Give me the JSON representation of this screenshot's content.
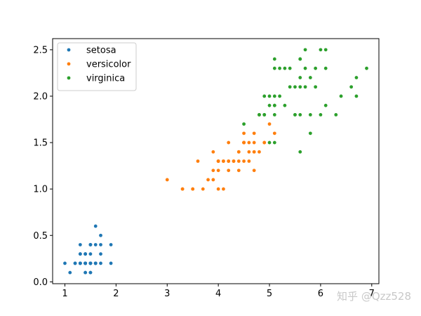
{
  "chart_data": {
    "type": "scatter",
    "xlim": [
      0.76,
      7.14
    ],
    "ylim": [
      -0.02,
      2.62
    ],
    "xticks": [
      1,
      2,
      3,
      4,
      5,
      6,
      7
    ],
    "yticks": [
      0.0,
      0.5,
      1.0,
      1.5,
      2.0,
      2.5
    ],
    "ytick_labels": [
      "0.0",
      "0.5",
      "1.0",
      "1.5",
      "2.0",
      "2.5"
    ],
    "grid": false,
    "legend_position": "top-left",
    "series": [
      {
        "name": "setosa",
        "color": "#1f77b4",
        "points": [
          [
            1.4,
            0.2
          ],
          [
            1.4,
            0.2
          ],
          [
            1.3,
            0.2
          ],
          [
            1.5,
            0.2
          ],
          [
            1.4,
            0.2
          ],
          [
            1.7,
            0.4
          ],
          [
            1.4,
            0.3
          ],
          [
            1.5,
            0.2
          ],
          [
            1.4,
            0.2
          ],
          [
            1.5,
            0.1
          ],
          [
            1.5,
            0.2
          ],
          [
            1.6,
            0.2
          ],
          [
            1.4,
            0.1
          ],
          [
            1.1,
            0.1
          ],
          [
            1.2,
            0.2
          ],
          [
            1.5,
            0.4
          ],
          [
            1.3,
            0.4
          ],
          [
            1.4,
            0.3
          ],
          [
            1.7,
            0.3
          ],
          [
            1.5,
            0.3
          ],
          [
            1.7,
            0.2
          ],
          [
            1.5,
            0.4
          ],
          [
            1.0,
            0.2
          ],
          [
            1.7,
            0.5
          ],
          [
            1.9,
            0.2
          ],
          [
            1.6,
            0.2
          ],
          [
            1.6,
            0.4
          ],
          [
            1.5,
            0.2
          ],
          [
            1.4,
            0.2
          ],
          [
            1.6,
            0.2
          ],
          [
            1.6,
            0.2
          ],
          [
            1.5,
            0.4
          ],
          [
            1.5,
            0.1
          ],
          [
            1.4,
            0.2
          ],
          [
            1.5,
            0.2
          ],
          [
            1.2,
            0.2
          ],
          [
            1.3,
            0.2
          ],
          [
            1.4,
            0.1
          ],
          [
            1.3,
            0.2
          ],
          [
            1.5,
            0.2
          ],
          [
            1.3,
            0.3
          ],
          [
            1.3,
            0.3
          ],
          [
            1.3,
            0.2
          ],
          [
            1.6,
            0.6
          ],
          [
            1.9,
            0.4
          ],
          [
            1.4,
            0.3
          ],
          [
            1.6,
            0.2
          ],
          [
            1.4,
            0.2
          ],
          [
            1.5,
            0.2
          ],
          [
            1.4,
            0.2
          ]
        ]
      },
      {
        "name": "versicolor",
        "color": "#ff7f0e",
        "points": [
          [
            4.7,
            1.4
          ],
          [
            4.5,
            1.5
          ],
          [
            4.9,
            1.5
          ],
          [
            4.0,
            1.3
          ],
          [
            4.6,
            1.5
          ],
          [
            4.5,
            1.3
          ],
          [
            4.7,
            1.6
          ],
          [
            3.3,
            1.0
          ],
          [
            4.6,
            1.3
          ],
          [
            3.9,
            1.4
          ],
          [
            3.5,
            1.0
          ],
          [
            4.2,
            1.5
          ],
          [
            4.0,
            1.0
          ],
          [
            4.7,
            1.4
          ],
          [
            3.6,
            1.3
          ],
          [
            4.4,
            1.4
          ],
          [
            4.5,
            1.5
          ],
          [
            4.1,
            1.0
          ],
          [
            4.5,
            1.5
          ],
          [
            3.9,
            1.1
          ],
          [
            4.8,
            1.8
          ],
          [
            4.0,
            1.3
          ],
          [
            4.9,
            1.5
          ],
          [
            4.7,
            1.2
          ],
          [
            4.3,
            1.3
          ],
          [
            4.4,
            1.4
          ],
          [
            4.8,
            1.4
          ],
          [
            5.0,
            1.7
          ],
          [
            4.5,
            1.5
          ],
          [
            3.5,
            1.0
          ],
          [
            3.8,
            1.1
          ],
          [
            3.7,
            1.0
          ],
          [
            3.9,
            1.2
          ],
          [
            5.1,
            1.6
          ],
          [
            4.5,
            1.5
          ],
          [
            4.5,
            1.6
          ],
          [
            4.7,
            1.5
          ],
          [
            4.4,
            1.3
          ],
          [
            4.1,
            1.3
          ],
          [
            4.0,
            1.3
          ],
          [
            4.4,
            1.2
          ],
          [
            4.6,
            1.4
          ],
          [
            4.0,
            1.2
          ],
          [
            3.3,
            1.0
          ],
          [
            4.2,
            1.3
          ],
          [
            4.2,
            1.2
          ],
          [
            4.2,
            1.3
          ],
          [
            4.3,
            1.3
          ],
          [
            3.0,
            1.1
          ],
          [
            4.1,
            1.3
          ]
        ]
      },
      {
        "name": "virginica",
        "color": "#2ca02c",
        "points": [
          [
            6.0,
            2.5
          ],
          [
            5.1,
            1.9
          ],
          [
            5.9,
            2.1
          ],
          [
            5.6,
            1.8
          ],
          [
            5.8,
            2.2
          ],
          [
            6.6,
            2.1
          ],
          [
            4.5,
            1.7
          ],
          [
            6.3,
            1.8
          ],
          [
            5.8,
            1.8
          ],
          [
            6.1,
            2.5
          ],
          [
            5.1,
            2.0
          ],
          [
            5.3,
            1.9
          ],
          [
            5.5,
            2.1
          ],
          [
            5.0,
            2.0
          ],
          [
            5.1,
            2.4
          ],
          [
            5.3,
            2.3
          ],
          [
            5.5,
            1.8
          ],
          [
            6.7,
            2.2
          ],
          [
            6.9,
            2.3
          ],
          [
            5.0,
            1.5
          ],
          [
            5.7,
            2.3
          ],
          [
            4.9,
            2.0
          ],
          [
            6.7,
            2.0
          ],
          [
            4.9,
            1.8
          ],
          [
            5.7,
            2.1
          ],
          [
            6.0,
            1.8
          ],
          [
            4.8,
            1.8
          ],
          [
            4.9,
            1.8
          ],
          [
            5.6,
            2.1
          ],
          [
            5.8,
            1.6
          ],
          [
            6.1,
            1.9
          ],
          [
            6.4,
            2.0
          ],
          [
            5.6,
            2.2
          ],
          [
            5.1,
            1.5
          ],
          [
            5.6,
            1.4
          ],
          [
            6.1,
            2.3
          ],
          [
            5.6,
            2.4
          ],
          [
            5.5,
            1.8
          ],
          [
            4.8,
            1.8
          ],
          [
            5.4,
            2.1
          ],
          [
            5.6,
            2.4
          ],
          [
            5.1,
            2.3
          ],
          [
            5.1,
            1.9
          ],
          [
            5.9,
            2.3
          ],
          [
            5.7,
            2.5
          ],
          [
            5.2,
            2.3
          ],
          [
            5.0,
            1.9
          ],
          [
            5.2,
            2.0
          ],
          [
            5.4,
            2.3
          ],
          [
            5.1,
            1.8
          ]
        ]
      }
    ]
  },
  "watermark": "知乎 @Qzz528"
}
